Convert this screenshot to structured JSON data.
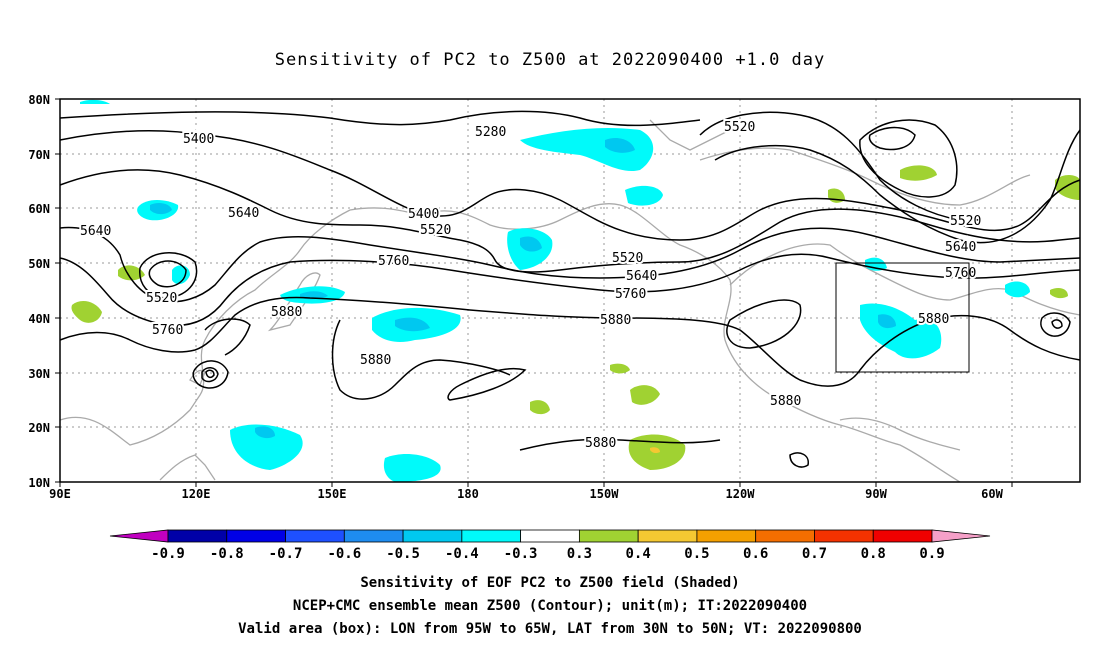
{
  "title": "Sensitivity of PC2 to Z500 at 2022090400 +1.0 day",
  "lat_labels": [
    "80N",
    "70N",
    "60N",
    "50N",
    "40N",
    "30N",
    "20N",
    "10N"
  ],
  "lon_labels": [
    "90E",
    "120E",
    "150E",
    "180",
    "150W",
    "120W",
    "90W",
    "60W"
  ],
  "contour_labels": [
    "5280",
    "5400",
    "5400",
    "5520",
    "5520",
    "5520",
    "5520",
    "5520",
    "5640",
    "5640",
    "5640",
    "5640",
    "5760",
    "5760",
    "5760",
    "5760",
    "5880",
    "5880",
    "5880",
    "5880",
    "5880",
    "5880"
  ],
  "colorbar": {
    "labels": [
      "-0.9",
      "-0.8",
      "-0.7",
      "-0.6",
      "-0.5",
      "-0.4",
      "-0.3",
      "0.3",
      "0.4",
      "0.5",
      "0.6",
      "0.7",
      "0.8",
      "0.9"
    ],
    "colors": [
      "#c000c0",
      "#0000a8",
      "#0000e6",
      "#1e50ff",
      "#1e8cf0",
      "#00c8f0",
      "#00fafa",
      "#ffffff",
      "#a0d232",
      "#f5c832",
      "#f5a000",
      "#f56e00",
      "#f53200",
      "#f00000",
      "#f5a0c8"
    ]
  },
  "valid_box": {
    "lon_from": "95W",
    "lon_to": "65W",
    "lat_from": "30N",
    "lat_to": "50N"
  },
  "captions": [
    "Sensitivity of EOF PC2 to Z500 field (Shaded)",
    "NCEP+CMC ensemble mean Z500 (Contour); unit(m); IT:2022090400",
    "Valid area (box): LON from 95W to 65W, LAT from 30N to 50N; VT: 2022090800"
  ]
}
